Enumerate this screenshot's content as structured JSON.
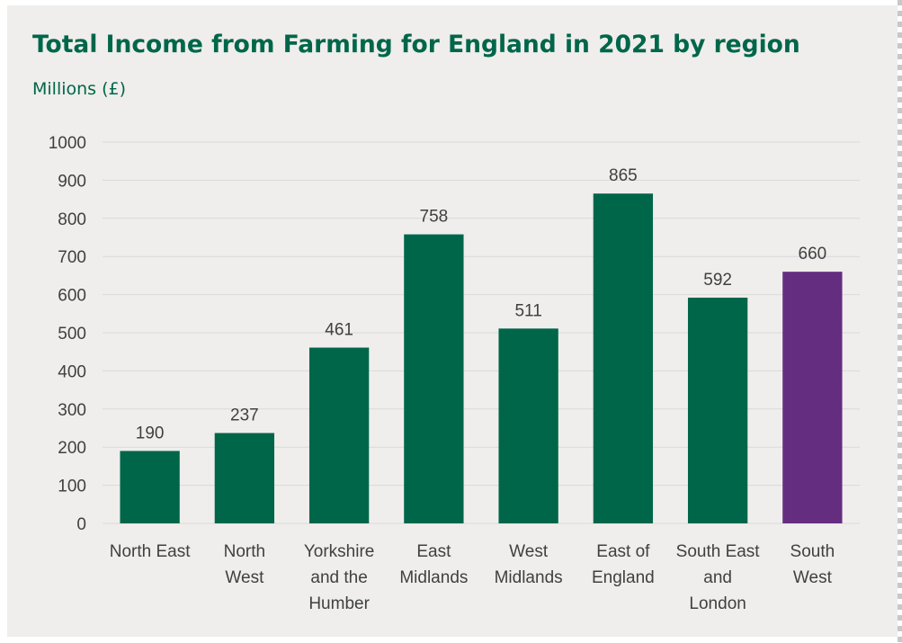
{
  "chart_data": {
    "type": "bar",
    "title": "Total Income from Farming for England in 2021 by region",
    "subtitle": "Millions (£)",
    "categories": [
      [
        "North East"
      ],
      [
        "North",
        "West"
      ],
      [
        "Yorkshire",
        "and the",
        "Humber"
      ],
      [
        "East",
        "Midlands"
      ],
      [
        "West",
        "Midlands"
      ],
      [
        "East of",
        "England"
      ],
      [
        "South East",
        "and",
        "London"
      ],
      [
        "South",
        "West"
      ]
    ],
    "values": [
      190,
      237,
      461,
      758,
      511,
      865,
      592,
      660
    ],
    "data_labels": [
      "190",
      "237",
      "461",
      "758",
      "511",
      "865",
      "592",
      "660"
    ],
    "ylim": [
      0,
      1000
    ],
    "yticks": [
      0,
      100,
      200,
      300,
      400,
      500,
      600,
      700,
      800,
      900,
      1000
    ],
    "grid": true,
    "xlabel": "",
    "ylabel": "",
    "colors": {
      "default": "#00664a",
      "highlight": "#652d80",
      "highlight_index": 7,
      "title": "#00664a",
      "grid": "#d9d9d9",
      "background": "#efeeec"
    }
  }
}
